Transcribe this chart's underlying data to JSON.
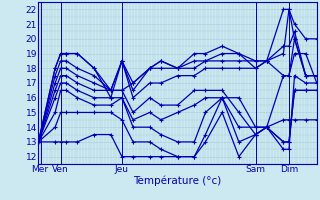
{
  "title": "Température (°c)",
  "x_day_labels": [
    "Mer",
    "Ven",
    "Jeu",
    "Sam",
    "Dim"
  ],
  "x_day_positions": [
    0.5,
    8,
    30,
    78,
    90
  ],
  "yticks": [
    12,
    13,
    14,
    15,
    16,
    17,
    18,
    19,
    20,
    21,
    22
  ],
  "ylim": [
    11.5,
    22.5
  ],
  "xlim": [
    0,
    100
  ],
  "bg_color": "#cce8f0",
  "line_color": "#0000bb",
  "grid_color": "#aaccda",
  "multi_series": [
    {
      "x": [
        0,
        6,
        8,
        10,
        14,
        20,
        26,
        30,
        34,
        40,
        44,
        50,
        56,
        60,
        66,
        72,
        78,
        82,
        88,
        90,
        92,
        96,
        100
      ],
      "y": [
        13,
        18,
        19,
        19,
        19,
        18,
        16.5,
        16.5,
        17,
        18,
        18.5,
        18,
        19,
        19,
        19.5,
        19,
        18,
        18.5,
        19,
        22,
        21,
        20,
        20
      ]
    },
    {
      "x": [
        0,
        6,
        8,
        10,
        14,
        20,
        26,
        30,
        34,
        40,
        44,
        50,
        56,
        60,
        66,
        72,
        78,
        82,
        88,
        90,
        92,
        96,
        100
      ],
      "y": [
        13,
        18,
        19,
        19,
        19,
        18,
        16,
        18.5,
        17,
        18,
        18.5,
        18,
        18.5,
        18.5,
        19,
        19,
        18.5,
        18.5,
        22,
        22,
        20,
        17.5,
        17.5
      ]
    },
    {
      "x": [
        0,
        6,
        8,
        10,
        14,
        20,
        26,
        30,
        34,
        40,
        44,
        50,
        56,
        60,
        66,
        72,
        78,
        82,
        88,
        90,
        92,
        96,
        100
      ],
      "y": [
        13,
        17.5,
        18.5,
        18.5,
        18,
        17.5,
        16.5,
        18.5,
        16.5,
        18,
        18,
        18,
        18,
        18.5,
        18.5,
        18.5,
        18.5,
        18.5,
        17.5,
        17.5,
        20,
        17.5,
        17.5
      ]
    },
    {
      "x": [
        0,
        6,
        8,
        10,
        14,
        20,
        26,
        30,
        34,
        40,
        44,
        50,
        56,
        60,
        66,
        72,
        78,
        82,
        88,
        90,
        92,
        96,
        100
      ],
      "y": [
        13,
        17,
        18,
        18,
        17.5,
        17,
        16.5,
        18.5,
        16,
        17,
        17,
        17.5,
        17.5,
        18,
        18,
        18,
        18,
        18.5,
        19.5,
        19.5,
        20.5,
        17.5,
        17.5
      ]
    },
    {
      "x": [
        0,
        6,
        8,
        10,
        14,
        20,
        26,
        30,
        34,
        40,
        44,
        50,
        56,
        60,
        66,
        72,
        78,
        82,
        88,
        90,
        92,
        96,
        100
      ],
      "y": [
        13,
        16.5,
        17.5,
        17.5,
        17,
        16.5,
        16.5,
        16.5,
        15,
        16,
        15.5,
        15.5,
        16.5,
        16.5,
        16.5,
        15,
        13.5,
        14,
        12.5,
        12.5,
        17.5,
        17,
        17
      ]
    },
    {
      "x": [
        0,
        6,
        8,
        10,
        14,
        20,
        26,
        30,
        34,
        40,
        44,
        50,
        56,
        60,
        66,
        72,
        78,
        82,
        88,
        90,
        92,
        96,
        100
      ],
      "y": [
        13,
        16,
        17,
        17,
        16.5,
        16,
        16,
        16,
        14.5,
        15,
        14.5,
        15,
        15.5,
        16,
        16,
        14,
        14,
        14,
        13,
        13,
        16.5,
        16.5,
        16.5
      ]
    },
    {
      "x": [
        0,
        6,
        8,
        10,
        14,
        20,
        26,
        30,
        34,
        40,
        44,
        50,
        56,
        60,
        66,
        72,
        78,
        82,
        88,
        90,
        92,
        96,
        100
      ],
      "y": [
        13,
        15,
        16.5,
        16.5,
        16,
        15.5,
        15.5,
        16,
        14,
        14,
        13.5,
        13,
        13,
        15,
        16,
        13,
        13.5,
        14,
        14.5,
        14.5,
        14.5,
        14.5,
        14.5
      ]
    },
    {
      "x": [
        0,
        6,
        8,
        10,
        14,
        20,
        26,
        30,
        34,
        40,
        44,
        50,
        56,
        60,
        66,
        72,
        78,
        82,
        88,
        90,
        92,
        96,
        100
      ],
      "y": [
        13,
        14,
        15,
        15,
        15,
        15,
        15,
        14.5,
        13,
        13,
        12.5,
        12,
        12,
        13,
        15,
        12,
        13.5,
        14,
        17.5,
        17.5,
        19,
        19,
        17
      ]
    },
    {
      "x": [
        0,
        6,
        8,
        10,
        14,
        20,
        26,
        30,
        34,
        40,
        44,
        50,
        56,
        60,
        66,
        72,
        78,
        82,
        88,
        90,
        92,
        96,
        100
      ],
      "y": [
        13,
        13,
        13,
        13,
        13,
        13.5,
        13.5,
        12,
        12,
        12,
        12,
        12,
        12,
        13.5,
        16,
        16,
        14,
        14,
        13,
        13,
        16.5,
        16.5,
        16.5
      ]
    }
  ],
  "vlines": [
    1,
    8,
    30,
    78,
    90
  ]
}
